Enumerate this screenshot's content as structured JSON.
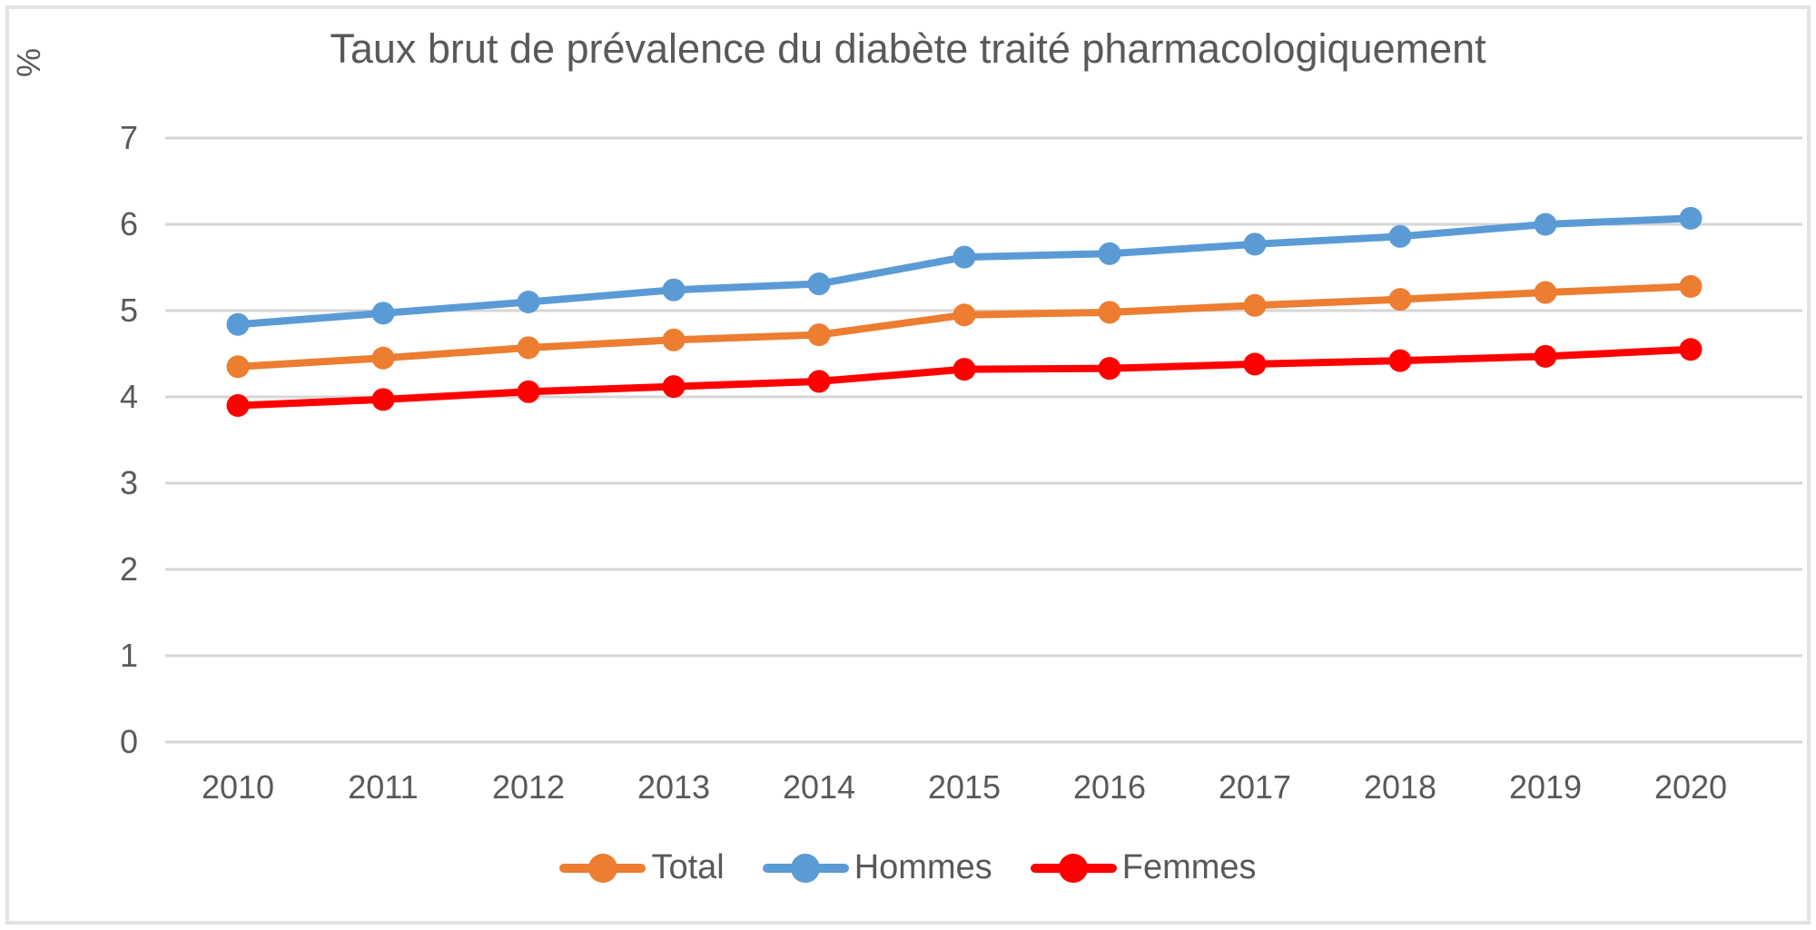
{
  "chart_data": {
    "type": "line",
    "title": "Taux brut de prévalence du diabète traité pharmacologiquement",
    "ylabel": "%",
    "xlabel": "",
    "categories": [
      "2010",
      "2011",
      "2012",
      "2013",
      "2014",
      "2015",
      "2016",
      "2017",
      "2018",
      "2019",
      "2020"
    ],
    "y_ticks": [
      7,
      6,
      5,
      4,
      3,
      2,
      1,
      0
    ],
    "ylim": [
      0,
      7
    ],
    "grid": true,
    "legend_position": "bottom",
    "series": [
      {
        "name": "Total",
        "color": "#ED7D31",
        "values": [
          4.35,
          4.45,
          4.57,
          4.66,
          4.72,
          4.95,
          4.98,
          5.06,
          5.13,
          5.21,
          5.28
        ]
      },
      {
        "name": "Hommes",
        "color": "#5B9BD5",
        "values": [
          4.84,
          4.97,
          5.1,
          5.24,
          5.31,
          5.62,
          5.66,
          5.77,
          5.86,
          6.0,
          6.07
        ]
      },
      {
        "name": "Femmes",
        "color": "#FF0000",
        "values": [
          3.9,
          3.97,
          4.06,
          4.12,
          4.18,
          4.32,
          4.33,
          4.38,
          4.42,
          4.47,
          4.55
        ]
      }
    ],
    "gridline_color": "#D6D6D6",
    "text_color": "#595959",
    "border_color": "#E3E3E3"
  }
}
